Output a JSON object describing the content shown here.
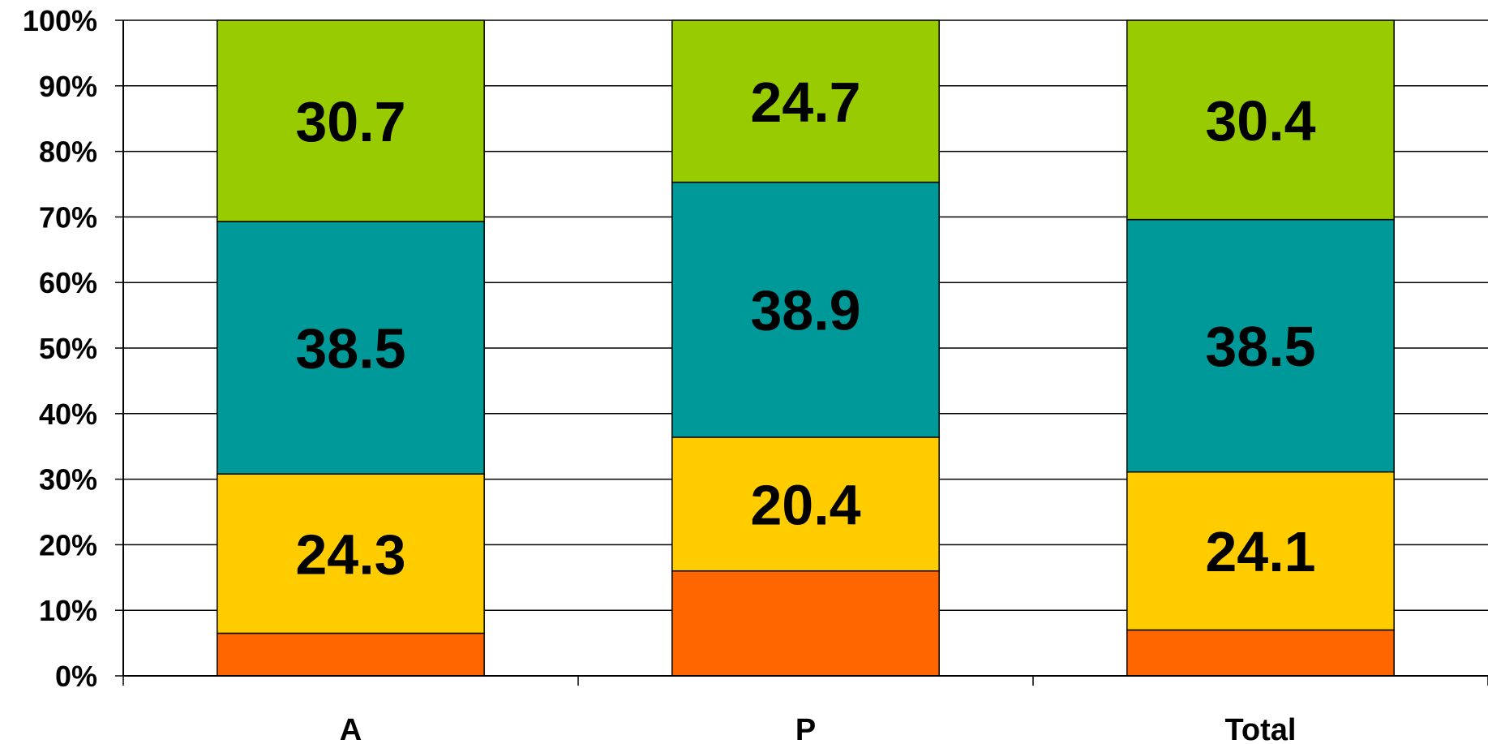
{
  "chart_data": {
    "type": "bar",
    "stacked": true,
    "normalized": true,
    "categories": [
      "A",
      "P",
      "Total"
    ],
    "series": [
      {
        "values": [
          6.5,
          16.0,
          7.0
        ],
        "color": "#FF6600",
        "labels": [
          "",
          "",
          ""
        ]
      },
      {
        "values": [
          24.3,
          20.4,
          24.1
        ],
        "color": "#FFCC00",
        "labels": [
          "24.3",
          "20.4",
          "24.1"
        ]
      },
      {
        "values": [
          38.5,
          38.9,
          38.5
        ],
        "color": "#009999",
        "labels": [
          "38.5",
          "38.9",
          "38.5"
        ]
      },
      {
        "values": [
          30.7,
          24.7,
          30.4
        ],
        "color": "#99CC00",
        "labels": [
          "30.7",
          "24.7",
          "30.4"
        ]
      }
    ],
    "y_ticks": [
      "0%",
      "10%",
      "20%",
      "30%",
      "40%",
      "50%",
      "60%",
      "70%",
      "80%",
      "90%",
      "100%"
    ],
    "ylim": [
      0,
      100
    ],
    "grid": true,
    "legend": "none",
    "title": "",
    "xlabel": "",
    "ylabel": ""
  }
}
